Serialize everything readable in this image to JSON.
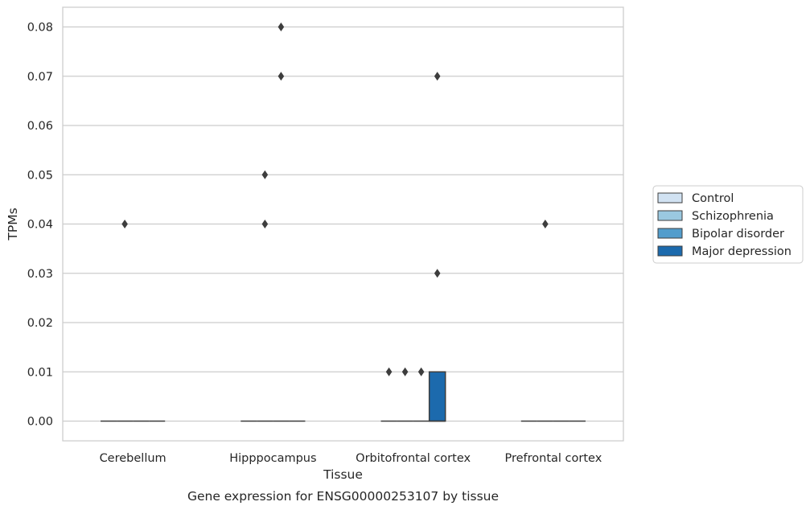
{
  "chart_data": {
    "type": "box",
    "xlabel": "Tissue",
    "ylabel": "TPMs",
    "caption": "Gene expression for ENSG00000253107 by tissue",
    "categories": [
      "Cerebellum",
      "Hipppocampus",
      "Orbitofrontal cortex",
      "Prefrontal cortex"
    ],
    "y_ticks": [
      "0.00",
      "0.01",
      "0.02",
      "0.03",
      "0.04",
      "0.05",
      "0.06",
      "0.07",
      "0.08"
    ],
    "ylim": [
      -0.004,
      0.084
    ],
    "grid": "horizontal",
    "legend_position": "right",
    "series": [
      {
        "name": "Control",
        "color": "#d1e2f2",
        "boxes": [
          {
            "category": "Cerebellum",
            "q1": 0,
            "median": 0,
            "q3": 0,
            "whisker_low": 0,
            "whisker_high": 0,
            "outliers": []
          },
          {
            "category": "Hipppocampus",
            "q1": 0,
            "median": 0,
            "q3": 0,
            "whisker_low": 0,
            "whisker_high": 0,
            "outliers": []
          },
          {
            "category": "Orbitofrontal cortex",
            "q1": 0,
            "median": 0,
            "q3": 0,
            "whisker_low": 0,
            "whisker_high": 0,
            "outliers": [
              0.01
            ]
          },
          {
            "category": "Prefrontal cortex",
            "q1": 0,
            "median": 0,
            "q3": 0,
            "whisker_low": 0,
            "whisker_high": 0,
            "outliers": []
          }
        ]
      },
      {
        "name": "Schizophrenia",
        "color": "#9ac8e0",
        "boxes": [
          {
            "category": "Cerebellum",
            "q1": 0,
            "median": 0,
            "q3": 0,
            "whisker_low": 0,
            "whisker_high": 0,
            "outliers": [
              0.04
            ]
          },
          {
            "category": "Hipppocampus",
            "q1": 0,
            "median": 0,
            "q3": 0,
            "whisker_low": 0,
            "whisker_high": 0,
            "outliers": [
              0.05,
              0.04
            ]
          },
          {
            "category": "Orbitofrontal cortex",
            "q1": 0,
            "median": 0,
            "q3": 0,
            "whisker_low": 0,
            "whisker_high": 0,
            "outliers": [
              0.01
            ]
          },
          {
            "category": "Prefrontal cortex",
            "q1": 0,
            "median": 0,
            "q3": 0,
            "whisker_low": 0,
            "whisker_high": 0,
            "outliers": [
              0.04
            ]
          }
        ]
      },
      {
        "name": "Bipolar disorder",
        "color": "#529dcc",
        "boxes": [
          {
            "category": "Cerebellum",
            "q1": 0,
            "median": 0,
            "q3": 0,
            "whisker_low": 0,
            "whisker_high": 0,
            "outliers": []
          },
          {
            "category": "Hipppocampus",
            "q1": 0,
            "median": 0,
            "q3": 0,
            "whisker_low": 0,
            "whisker_high": 0,
            "outliers": [
              0.08,
              0.07
            ]
          },
          {
            "category": "Orbitofrontal cortex",
            "q1": 0,
            "median": 0,
            "q3": 0,
            "whisker_low": 0,
            "whisker_high": 0,
            "outliers": [
              0.01
            ]
          },
          {
            "category": "Prefrontal cortex",
            "q1": 0,
            "median": 0,
            "q3": 0,
            "whisker_low": 0,
            "whisker_high": 0,
            "outliers": []
          }
        ]
      },
      {
        "name": "Major depression",
        "color": "#1c6aad",
        "boxes": [
          {
            "category": "Cerebellum",
            "q1": 0,
            "median": 0,
            "q3": 0,
            "whisker_low": 0,
            "whisker_high": 0,
            "outliers": []
          },
          {
            "category": "Hipppocampus",
            "q1": 0,
            "median": 0,
            "q3": 0,
            "whisker_low": 0,
            "whisker_high": 0,
            "outliers": []
          },
          {
            "category": "Orbitofrontal cortex",
            "q1": 0,
            "median": 0,
            "q3": 0.01,
            "whisker_low": 0,
            "whisker_high": 0.01,
            "outliers": [
              0.07,
              0.03
            ]
          },
          {
            "category": "Prefrontal cortex",
            "q1": 0,
            "median": 0,
            "q3": 0,
            "whisker_low": 0,
            "whisker_high": 0,
            "outliers": []
          }
        ]
      }
    ]
  }
}
